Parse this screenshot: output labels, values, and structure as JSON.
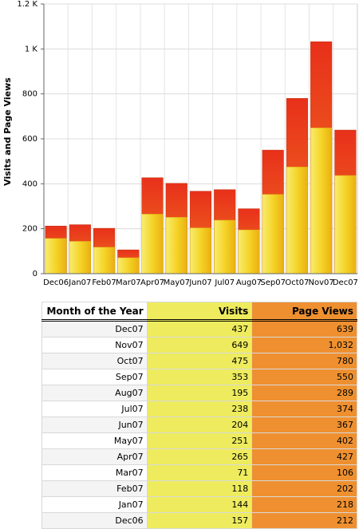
{
  "chart_data": {
    "type": "bar",
    "y_label": "Visits and Page Views",
    "categories": [
      "Dec06",
      "Jan07",
      "Feb07",
      "Mar07",
      "Apr07",
      "May07",
      "Jun07",
      "Jul07",
      "Aug07",
      "Sep07",
      "Oct07",
      "Nov07",
      "Dec07"
    ],
    "series": [
      {
        "name": "Page Views",
        "color": "#e8401a",
        "values": [
          212,
          218,
          202,
          106,
          427,
          402,
          367,
          374,
          289,
          550,
          780,
          1032,
          639
        ]
      },
      {
        "name": "Visits",
        "color": "#f5d020",
        "values": [
          157,
          144,
          118,
          71,
          265,
          251,
          204,
          238,
          195,
          353,
          475,
          649,
          437
        ]
      }
    ],
    "ylim": [
      0,
      1200
    ],
    "yticks": [
      0,
      200,
      400,
      600,
      800,
      {
        "value": 1000,
        "label": "1 K"
      },
      {
        "value": 1200,
        "label": "1.2 K"
      }
    ],
    "grid": true
  },
  "table": {
    "header": [
      "Month of the Year",
      "Visits",
      "Page Views"
    ],
    "rows": [
      [
        "Dec07",
        "437",
        "639"
      ],
      [
        "Nov07",
        "649",
        "1,032"
      ],
      [
        "Oct07",
        "475",
        "780"
      ],
      [
        "Sep07",
        "353",
        "550"
      ],
      [
        "Aug07",
        "195",
        "289"
      ],
      [
        "Jul07",
        "238",
        "374"
      ],
      [
        "Jun07",
        "204",
        "367"
      ],
      [
        "May07",
        "251",
        "402"
      ],
      [
        "Apr07",
        "265",
        "427"
      ],
      [
        "Mar07",
        "71",
        "106"
      ],
      [
        "Feb07",
        "118",
        "202"
      ],
      [
        "Jan07",
        "144",
        "218"
      ],
      [
        "Dec06",
        "157",
        "212"
      ]
    ]
  }
}
